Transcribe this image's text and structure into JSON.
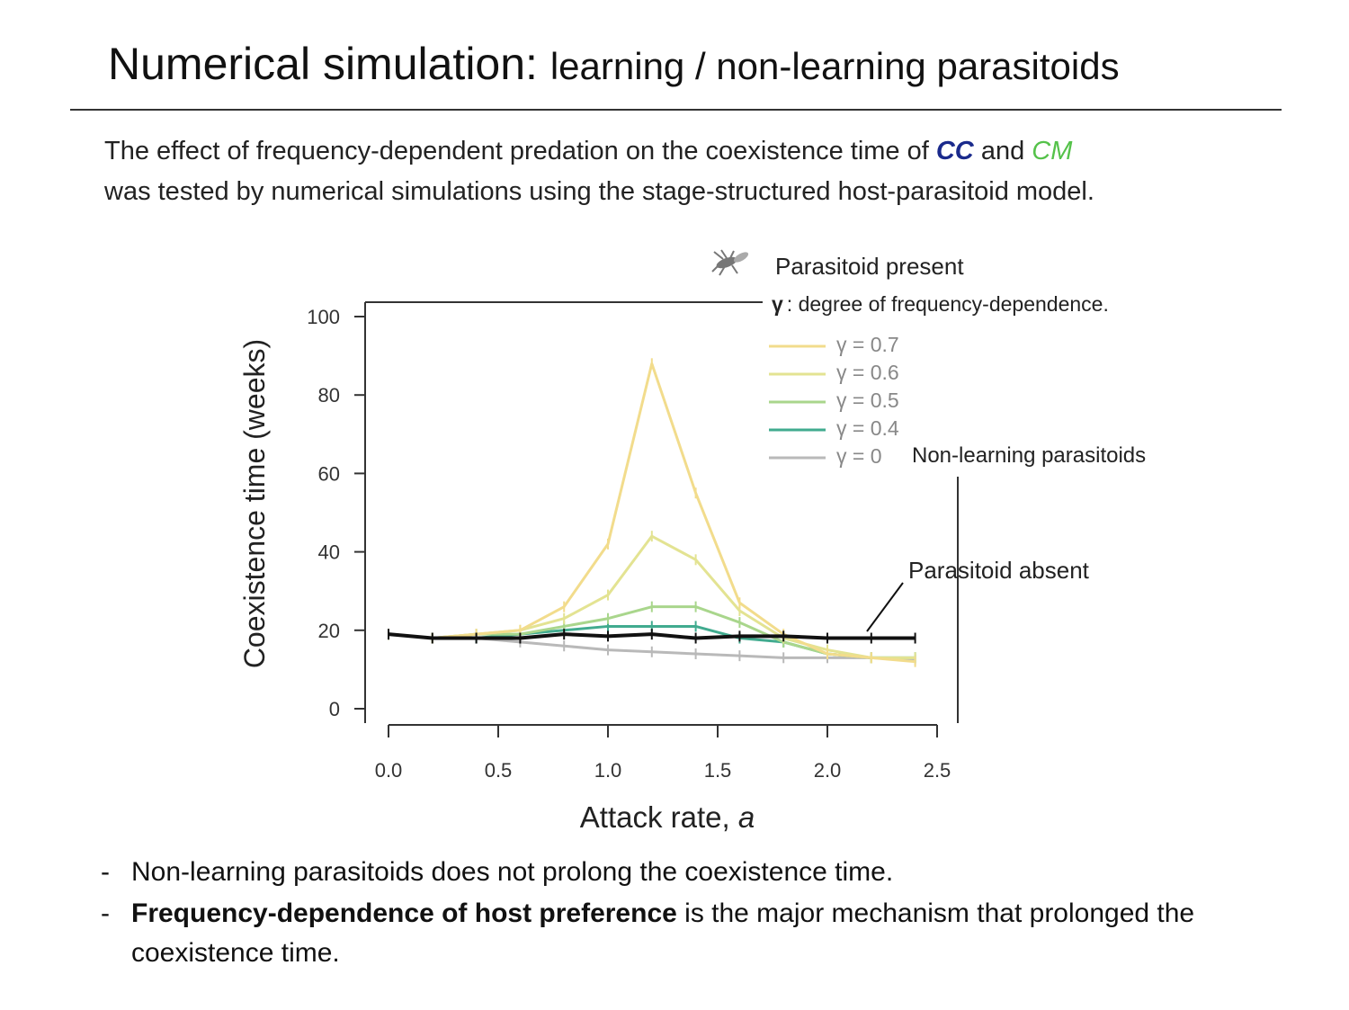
{
  "slide": {
    "title_main": "Numerical simulation:",
    "title_sub": "learning / non-learning parasitoids",
    "intro_part1": "The effect of frequency-dependent predation on the coexistence time of",
    "intro_cc": "CC",
    "intro_and": "and",
    "intro_cm": "CM",
    "intro_part2": "was tested by numerical simulations using the stage-structured host-parasitoid model.",
    "bullets": [
      {
        "dash": "-",
        "bold": "",
        "text": "Non-learning parasitoids does not prolong the coexistence time."
      },
      {
        "dash": "-",
        "bold": "Frequency-dependence of host preference",
        "text": " is the major mechanism that prolonged the coexistence time."
      }
    ]
  },
  "icons": {
    "parasitoid": "wasp-icon"
  },
  "chart_data": {
    "type": "line",
    "xlabel": "Attack rate, ",
    "xlabel_var": "a",
    "ylabel": "Coexistence time (weeks)",
    "xlim": [
      0,
      2.5
    ],
    "ylim": [
      0,
      100
    ],
    "x_ticks": [
      "0.0",
      "0.5",
      "1.0",
      "1.5",
      "2.0",
      "2.5"
    ],
    "y_ticks": [
      "0",
      "20",
      "40",
      "60",
      "80",
      "100"
    ],
    "legend_header_present": "Parasitoid present",
    "legend_header_gamma_symbol": "γ",
    "legend_header_gamma_text": ": degree of frequency-dependence.",
    "annotation_nonlearning": "Non-learning parasitoids",
    "annotation_absent": "Parasitoid absent",
    "series": [
      {
        "name": "γ = 0.7",
        "color": "#f2dc8c",
        "width": 3,
        "x": [
          0,
          0.2,
          0.4,
          0.6,
          0.8,
          1.0,
          1.2,
          1.4,
          1.6,
          1.8,
          2.0,
          2.2,
          2.4
        ],
        "y": [
          19,
          18,
          19,
          20,
          26,
          42,
          88,
          55,
          27,
          19,
          14,
          13,
          12
        ]
      },
      {
        "name": "γ = 0.6",
        "color": "#e3e392",
        "width": 3,
        "x": [
          0,
          0.2,
          0.4,
          0.6,
          0.8,
          1.0,
          1.2,
          1.4,
          1.6,
          1.8,
          2.0,
          2.2,
          2.4
        ],
        "y": [
          19,
          18,
          19,
          20,
          23,
          29,
          44,
          38,
          25,
          18,
          15,
          13,
          13
        ]
      },
      {
        "name": "γ = 0.5",
        "color": "#a9d68c",
        "width": 3,
        "x": [
          0,
          0.2,
          0.4,
          0.6,
          0.8,
          1.0,
          1.2,
          1.4,
          1.6,
          1.8,
          2.0,
          2.2,
          2.4
        ],
        "y": [
          19,
          18,
          19,
          19,
          21,
          23,
          26,
          26,
          22,
          17,
          14,
          13,
          13
        ]
      },
      {
        "name": "γ = 0.4",
        "color": "#41ab8f",
        "width": 3,
        "x": [
          0,
          0.2,
          0.4,
          0.6,
          0.8,
          1.0,
          1.2,
          1.4,
          1.6,
          1.8,
          2.0,
          2.2,
          2.4
        ],
        "y": [
          19,
          18,
          18,
          19,
          20,
          21,
          21,
          21,
          18,
          17,
          14,
          13,
          13
        ]
      },
      {
        "name": "γ = 0",
        "color": "#b9b9b9",
        "width": 3,
        "x": [
          0,
          0.2,
          0.4,
          0.6,
          0.8,
          1.0,
          1.2,
          1.4,
          1.6,
          1.8,
          2.0,
          2.2,
          2.4
        ],
        "y": [
          19,
          18,
          18,
          17,
          16,
          15,
          14.5,
          14,
          13.5,
          13,
          13,
          13,
          12.5
        ]
      },
      {
        "name": "Parasitoid absent",
        "color": "#111111",
        "width": 4,
        "x": [
          0,
          0.2,
          0.4,
          0.6,
          0.8,
          1.0,
          1.2,
          1.4,
          1.6,
          1.8,
          2.0,
          2.2,
          2.4
        ],
        "y": [
          19,
          18,
          18,
          18,
          19,
          18.5,
          19,
          18,
          18.5,
          18.5,
          18,
          18,
          18
        ]
      }
    ]
  }
}
